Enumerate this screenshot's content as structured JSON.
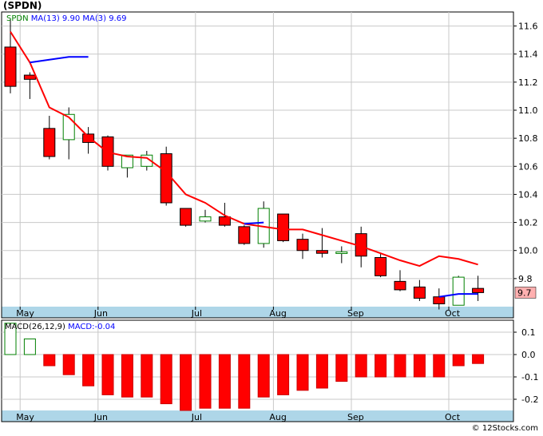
{
  "header": {
    "title": "(SPDN)",
    "credit": "© 12Stocks.com"
  },
  "colors": {
    "panel_border": "#000000",
    "axis_band": "#aed6e8",
    "grid": "#c8c8c8",
    "up_fill": "#ffffff",
    "up_stroke": "#008000",
    "down_fill": "#ff0000",
    "down_stroke": "#000000",
    "ma13": "#ff0000",
    "ma3": "#0000ff",
    "macd_up": "#ffffff",
    "macd_down": "#ff0000",
    "last_badge": "#ffb0b0"
  },
  "chart_data": [
    {
      "type": "candlestick",
      "legend": {
        "symbol": "SPDN",
        "ma13_label": "MA(13)",
        "ma13_value": "9.90",
        "ma3_label": "MA(3)",
        "ma3_value": "9.69"
      },
      "last_price_label": "9.7",
      "x_labels": [
        {
          "label": "May",
          "index": 1
        },
        {
          "label": "Jun",
          "index": 5
        },
        {
          "label": "Jul",
          "index": 10
        },
        {
          "label": "Aug",
          "index": 14
        },
        {
          "label": "Sep",
          "index": 18
        },
        {
          "label": "Oct",
          "index": 23
        }
      ],
      "ylim": [
        9.6,
        11.7
      ],
      "y_ticks": [
        "9.8",
        "10.0",
        "10.2",
        "10.4",
        "10.6",
        "10.8",
        "11.0",
        "11.2",
        "11.4",
        "11.6"
      ],
      "candles": [
        {
          "o": 11.45,
          "h": 11.65,
          "l": 11.12,
          "c": 11.17
        },
        {
          "o": 11.25,
          "h": 11.27,
          "l": 11.08,
          "c": 11.22
        },
        {
          "o": 10.87,
          "h": 10.96,
          "l": 10.65,
          "c": 10.67
        },
        {
          "o": 10.79,
          "h": 11.02,
          "l": 10.65,
          "c": 10.97
        },
        {
          "o": 10.83,
          "h": 10.88,
          "l": 10.69,
          "c": 10.77
        },
        {
          "o": 10.81,
          "h": 10.82,
          "l": 10.57,
          "c": 10.6
        },
        {
          "o": 10.59,
          "h": 10.68,
          "l": 10.52,
          "c": 10.68
        },
        {
          "o": 10.6,
          "h": 10.71,
          "l": 10.57,
          "c": 10.68
        },
        {
          "o": 10.69,
          "h": 10.74,
          "l": 10.32,
          "c": 10.34
        },
        {
          "o": 10.3,
          "h": 10.3,
          "l": 10.17,
          "c": 10.18
        },
        {
          "o": 10.21,
          "h": 10.29,
          "l": 10.2,
          "c": 10.24
        },
        {
          "o": 10.24,
          "h": 10.34,
          "l": 10.17,
          "c": 10.18
        },
        {
          "o": 10.17,
          "h": 10.18,
          "l": 10.04,
          "c": 10.05
        },
        {
          "o": 10.05,
          "h": 10.35,
          "l": 10.02,
          "c": 10.3
        },
        {
          "o": 10.26,
          "h": 10.26,
          "l": 10.06,
          "c": 10.07
        },
        {
          "o": 10.08,
          "h": 10.12,
          "l": 9.94,
          "c": 10.0
        },
        {
          "o": 10.0,
          "h": 10.16,
          "l": 9.95,
          "c": 9.98
        },
        {
          "o": 9.99,
          "h": 10.03,
          "l": 9.91,
          "c": 9.99
        },
        {
          "o": 10.12,
          "h": 10.17,
          "l": 9.88,
          "c": 9.96
        },
        {
          "o": 9.95,
          "h": 9.98,
          "l": 9.81,
          "c": 9.82
        },
        {
          "o": 9.78,
          "h": 9.86,
          "l": 9.71,
          "c": 9.72
        },
        {
          "o": 9.74,
          "h": 9.79,
          "l": 9.64,
          "c": 9.66
        },
        {
          "o": 9.67,
          "h": 9.73,
          "l": 9.58,
          "c": 9.62
        },
        {
          "o": 9.61,
          "h": 9.82,
          "l": 9.61,
          "c": 9.81
        },
        {
          "o": 9.73,
          "h": 9.82,
          "l": 9.64,
          "c": 9.7
        }
      ],
      "ma13": [
        11.56,
        11.34,
        11.02,
        10.95,
        10.81,
        10.7,
        10.67,
        10.66,
        10.56,
        10.4,
        10.34,
        10.25,
        10.19,
        10.17,
        10.15,
        10.15,
        10.11,
        10.07,
        10.03,
        9.98,
        9.93,
        9.89
      ],
      "ma13_start_index": 0,
      "ma13_extra": [
        9.96,
        9.94,
        9.9
      ],
      "ma3": [
        {
          "i": 1,
          "v": 11.34
        },
        {
          "i": 2,
          "v": 11.36
        },
        {
          "i": 3,
          "v": 11.38
        },
        {
          "i": 4,
          "v": 11.38
        },
        {
          "i": 12,
          "v": 10.19
        },
        {
          "i": 13,
          "v": 10.2
        },
        {
          "i": 22,
          "v": 9.67
        },
        {
          "i": 23,
          "v": 9.69
        },
        {
          "i": 24,
          "v": 9.69
        }
      ]
    },
    {
      "type": "bar",
      "legend": {
        "label": "MACD(26,12,9)",
        "value_label": "MACD:-0.04"
      },
      "ylim": [
        -0.25,
        0.15
      ],
      "y_ticks": [
        "0.1",
        "0.0",
        "-0.1",
        "-0.2"
      ],
      "values": [
        0.14,
        0.07,
        -0.05,
        -0.09,
        -0.14,
        -0.18,
        -0.19,
        -0.19,
        -0.22,
        -0.25,
        -0.24,
        -0.24,
        -0.24,
        -0.19,
        -0.18,
        -0.16,
        -0.15,
        -0.12,
        -0.1,
        -0.1,
        -0.1,
        -0.1,
        -0.1,
        -0.05,
        -0.04
      ]
    }
  ]
}
